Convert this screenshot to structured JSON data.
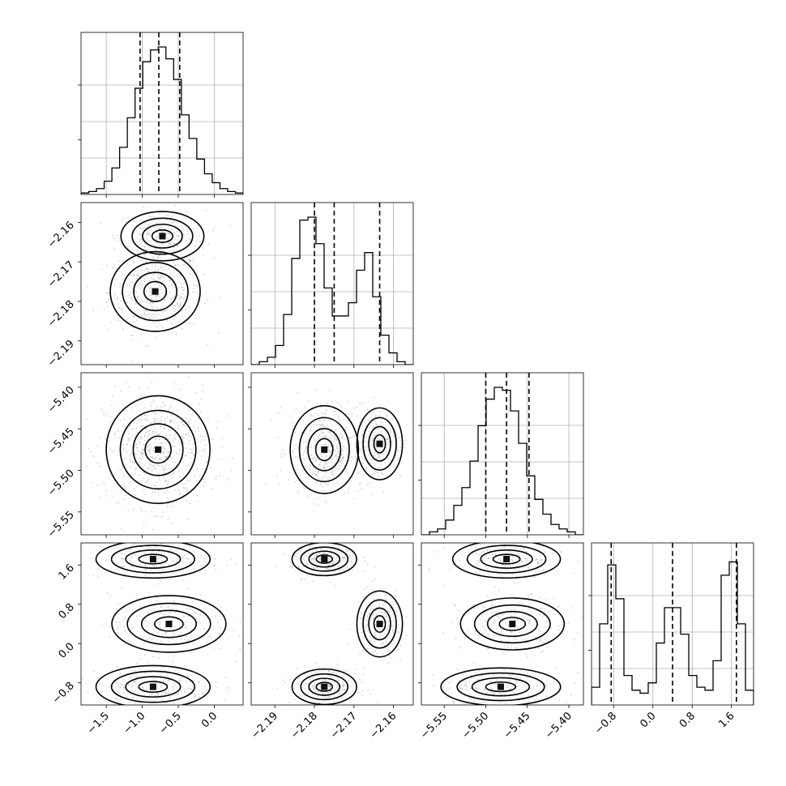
{
  "chart_data": {
    "type": "corner",
    "params": [
      {
        "range": [
          -1.85,
          0.4
        ],
        "ticks": [
          -1.5,
          -1.0,
          -0.5,
          0.0
        ],
        "tick_labels": [
          "−1.5",
          "−1.0",
          "−0.5",
          "0.0"
        ],
        "quantiles": [
          -1.03,
          -0.77,
          -0.48
        ]
      },
      {
        "range": [
          -2.196,
          -2.155
        ],
        "ticks": [
          -2.19,
          -2.18,
          -2.17,
          -2.16
        ],
        "tick_labels": [
          "−2.19",
          "−2.18",
          "−2.17",
          "−2.16"
        ],
        "quantiles": [
          -2.18,
          -2.175,
          -2.1635
        ]
      },
      {
        "range": [
          -5.5775,
          -5.3825
        ],
        "ticks": [
          -5.55,
          -5.5,
          -5.45,
          -5.4
        ],
        "tick_labels": [
          "−5.55",
          "−5.50",
          "−5.45",
          "−5.40"
        ],
        "quantiles": [
          -5.5,
          -5.475,
          -5.448
        ]
      },
      {
        "range": [
          -1.25,
          2.05
        ],
        "ticks": [
          -0.8,
          0.0,
          0.8,
          1.6
        ],
        "tick_labels": [
          "−0.8",
          "0.0",
          "0.8",
          "1.6"
        ],
        "quantiles": [
          -0.85,
          0.4,
          1.7
        ]
      }
    ],
    "histograms": [
      {
        "param": 0,
        "counts": [
          0.01,
          0.02,
          0.04,
          0.09,
          0.18,
          0.32,
          0.52,
          0.72,
          0.9,
          0.98,
          1.0,
          0.92,
          0.78,
          0.54,
          0.38,
          0.24,
          0.14,
          0.08,
          0.04,
          0.02,
          0.01
        ]
      },
      {
        "param": 1,
        "counts": [
          0.0,
          0.02,
          0.05,
          0.13,
          0.34,
          0.72,
          0.98,
          1.0,
          0.82,
          0.52,
          0.33,
          0.33,
          0.42,
          0.64,
          0.76,
          0.46,
          0.2,
          0.08,
          0.02,
          0.0
        ]
      },
      {
        "param": 2,
        "counts": [
          0.0,
          0.02,
          0.04,
          0.1,
          0.2,
          0.32,
          0.5,
          0.74,
          0.92,
          1.0,
          0.98,
          0.84,
          0.62,
          0.4,
          0.24,
          0.14,
          0.07,
          0.04,
          0.02,
          0.0
        ]
      },
      {
        "param": 3,
        "counts": [
          0.12,
          0.55,
          0.95,
          0.72,
          0.2,
          0.1,
          0.08,
          0.15,
          0.42,
          0.66,
          0.66,
          0.48,
          0.2,
          0.12,
          0.1,
          0.3,
          0.88,
          0.97,
          0.55,
          0.1
        ]
      }
    ],
    "grid": true,
    "contour_levels": 4
  }
}
